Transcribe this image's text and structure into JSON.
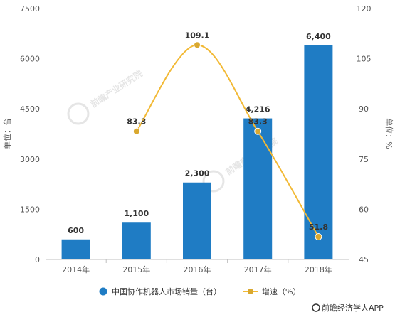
{
  "chart_data": {
    "type": "bar",
    "categories": [
      "2014年",
      "2015年",
      "2016年",
      "2017年",
      "2018年"
    ],
    "series": [
      {
        "name": "中国协作机器人市场销量（台）",
        "type": "bar",
        "axis": "left",
        "values": [
          600,
          1100,
          2300,
          4216,
          6400
        ],
        "labels": [
          "600",
          "1,100",
          "2,300",
          "4,216",
          "6,400"
        ]
      },
      {
        "name": "增速（%）",
        "type": "line",
        "axis": "right",
        "values": [
          null,
          83.3,
          109.1,
          83.3,
          51.8
        ],
        "labels": [
          "",
          "83.3",
          "109.1",
          "83.3",
          "51.8"
        ]
      }
    ],
    "ylabel_left": "单位：台",
    "ylabel_right": "单位：%",
    "ylim_left": [
      0,
      7500
    ],
    "yticks_left": [
      "0",
      "1500",
      "3000",
      "4500",
      "6000",
      "7500"
    ],
    "ylim_right": [
      45,
      120
    ],
    "yticks_right": [
      "45",
      "60",
      "75",
      "90",
      "105",
      "120"
    ],
    "legend_position": "bottom",
    "grid": false,
    "colors": {
      "bar": "#1f7cc4",
      "line": "#f2b935",
      "marker": "#d9a82f"
    }
  },
  "watermark": {
    "text": "前瞻产业研究院"
  },
  "source": {
    "text": "前瞻经济学人APP"
  }
}
